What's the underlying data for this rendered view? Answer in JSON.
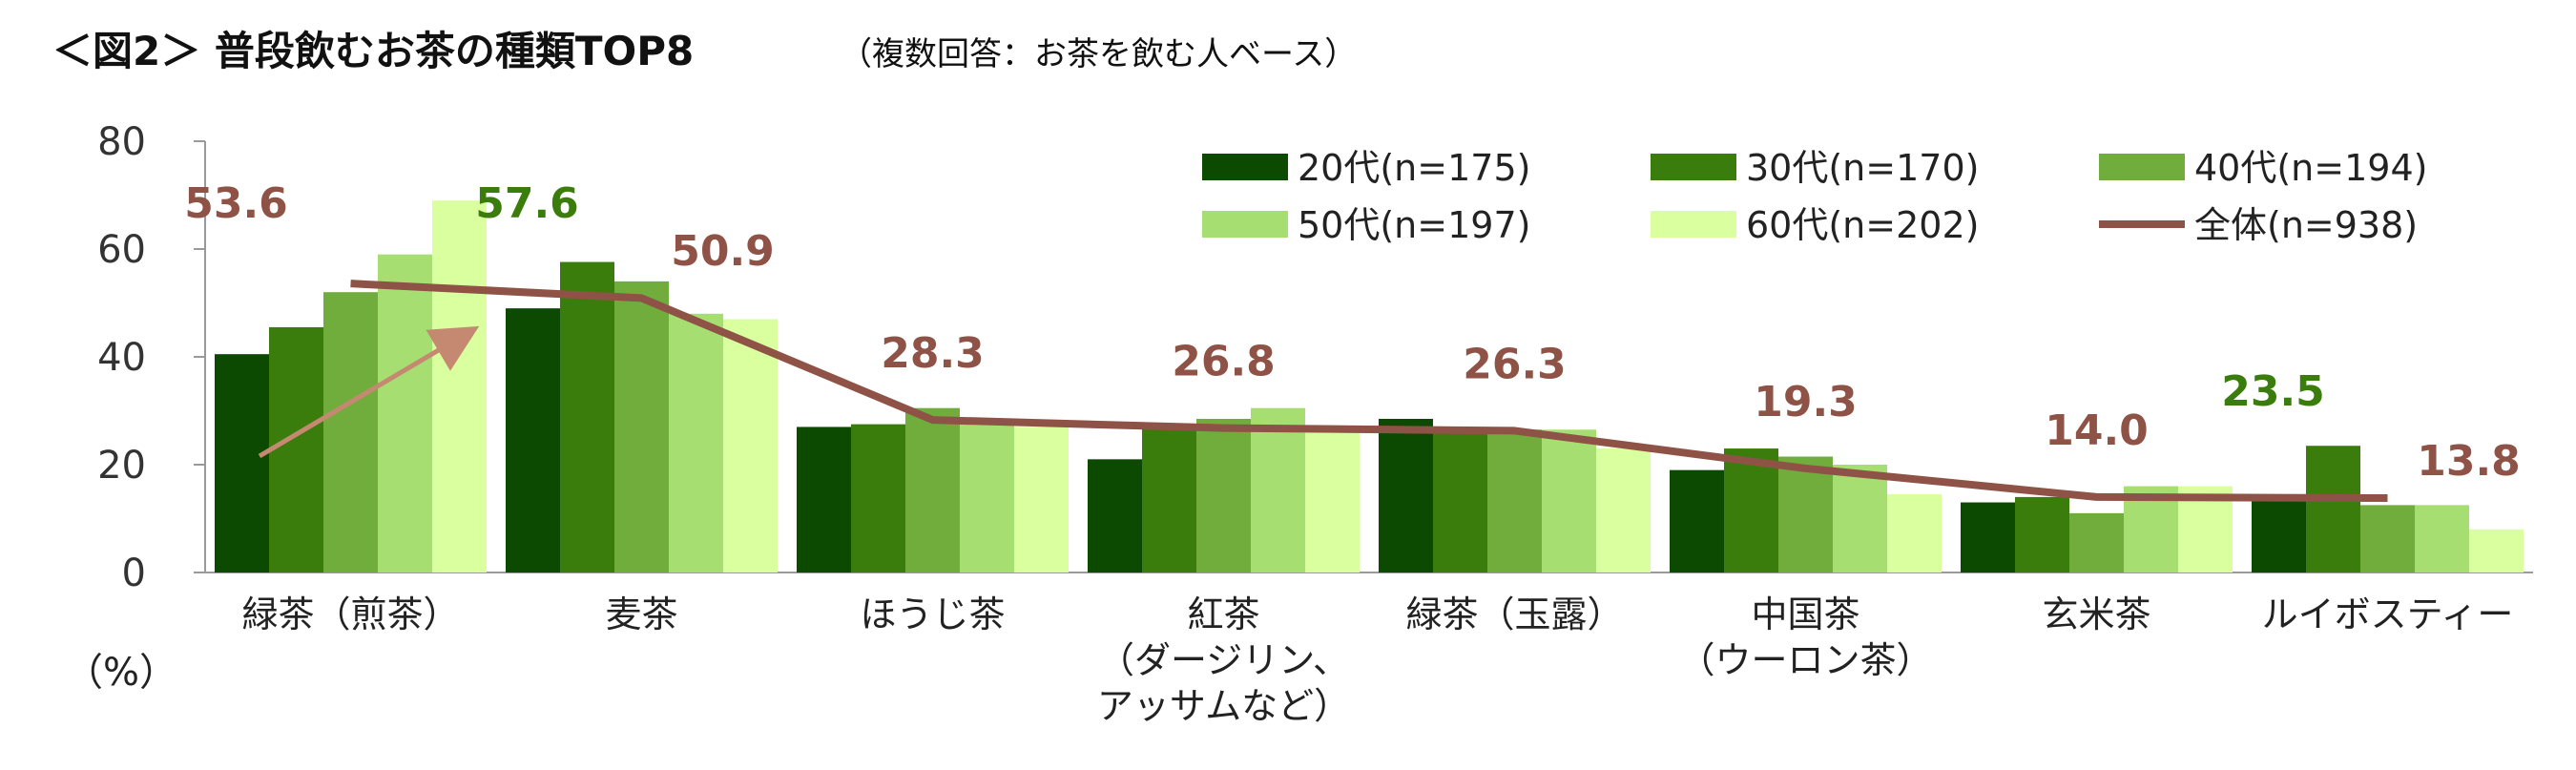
{
  "title": {
    "main": "＜図2＞ 普段飲むお茶の種類TOP8",
    "sub": "（複数回答：お茶を飲む人ベース）"
  },
  "unit_label": "（%）",
  "colors": {
    "s20": "#0b4a00",
    "s30": "#3b7d0c",
    "s40": "#70ad3c",
    "s50": "#a6de72",
    "s60": "#d9ff9e",
    "total": "#8e5346",
    "label_total": "#8e5346",
    "label_green": "#3b7d0c",
    "arrow": "#c58972"
  },
  "chart_data": {
    "type": "bar",
    "categories": [
      [
        "緑茶（煎茶）"
      ],
      [
        "麦茶"
      ],
      [
        "ほうじ茶"
      ],
      [
        "紅茶",
        "（ダージリン、",
        "アッサムなど）"
      ],
      [
        "緑茶（玉露）"
      ],
      [
        "中国茶",
        "（ウーロン茶）"
      ],
      [
        "玄米茶"
      ],
      [
        "ルイボスティー"
      ]
    ],
    "ylim": [
      0,
      80
    ],
    "yticks": [
      0,
      20,
      40,
      60,
      80
    ],
    "series": [
      {
        "name": "20代(n=175)",
        "values": [
          40.5,
          49,
          27,
          21,
          28.5,
          19,
          13,
          14
        ]
      },
      {
        "name": "30代(n=170)",
        "values": [
          45.5,
          57.6,
          27.5,
          27,
          26,
          23,
          14,
          23.5
        ]
      },
      {
        "name": "40代(n=194)",
        "values": [
          52,
          54,
          30.5,
          28.5,
          26.5,
          21.5,
          11,
          12.5
        ]
      },
      {
        "name": "50代(n=197)",
        "values": [
          59,
          48,
          28.5,
          30.5,
          26.5,
          20,
          16,
          12.5
        ]
      },
      {
        "name": "60代(n=202)",
        "values": [
          69,
          47,
          27,
          27,
          23,
          14.5,
          16,
          8
        ]
      }
    ],
    "line": {
      "name": "全体(n=938)",
      "values": [
        53.6,
        50.9,
        28.3,
        26.8,
        26.3,
        19.3,
        14.0,
        13.8
      ]
    },
    "data_labels": [
      {
        "text": "53.6",
        "category": 0,
        "anchor": "left",
        "color_key": "label_total"
      },
      {
        "text": "57.6",
        "category": 1,
        "anchor": "left",
        "color_key": "label_green"
      },
      {
        "text": "50.9",
        "category": 1,
        "anchor": "right",
        "color_key": "label_total"
      },
      {
        "text": "28.3",
        "category": 2,
        "anchor": "center",
        "color_key": "label_total"
      },
      {
        "text": "26.8",
        "category": 3,
        "anchor": "center",
        "color_key": "label_total"
      },
      {
        "text": "26.3",
        "category": 4,
        "anchor": "center",
        "color_key": "label_total"
      },
      {
        "text": "19.3",
        "category": 5,
        "anchor": "center",
        "color_key": "label_total"
      },
      {
        "text": "14.0",
        "category": 6,
        "anchor": "center",
        "color_key": "label_total"
      },
      {
        "text": "23.5",
        "category": 7,
        "anchor": "left",
        "color_key": "label_green"
      },
      {
        "text": "13.8",
        "category": 7,
        "anchor": "right",
        "color_key": "label_total"
      }
    ],
    "legend_position": "top-right",
    "grid": false
  }
}
